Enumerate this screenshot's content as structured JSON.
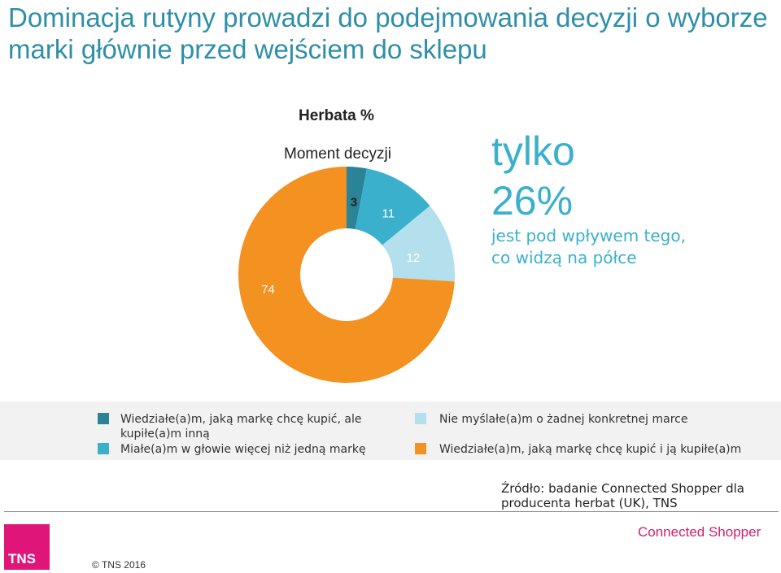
{
  "title": "Dominacja rutyny prowadzi do podejmowania decyzji o wyborze marki głównie przed wejściem do sklepu",
  "chart_data": {
    "type": "pie",
    "title": "Herbata %",
    "subtitle": "Moment decyzji",
    "labels": [
      "Wiedziałe(a)m, jaką markę chcę kupić, ale kupiłe(a)m inną",
      "Miałe(a)m w głowie więcej niż jedną markę",
      "Nie myślałe(a)m o żadnej konkretnej marce",
      "Wiedziałe(a)m, jaką markę chcę kupić i ją kupiłe(a)m"
    ],
    "values": [
      3,
      11,
      12,
      74
    ],
    "colors": [
      "#2a8396",
      "#3ab0cc",
      "#b3e0ec",
      "#f39121"
    ],
    "label_colors": [
      "#222222",
      "#ffffff",
      "#ffffff",
      "#ffffff"
    ],
    "donut": true
  },
  "callout": {
    "line1": "tylko",
    "line2": "26%",
    "text": "jest pod wpływem tego, co widzą na półce"
  },
  "source": "Źródło: badanie Connected Shopper dla producenta herbat (UK), TNS",
  "footer": {
    "logo": "TNS",
    "copyright": "© TNS 2016",
    "brand": "Connected Shopper"
  }
}
